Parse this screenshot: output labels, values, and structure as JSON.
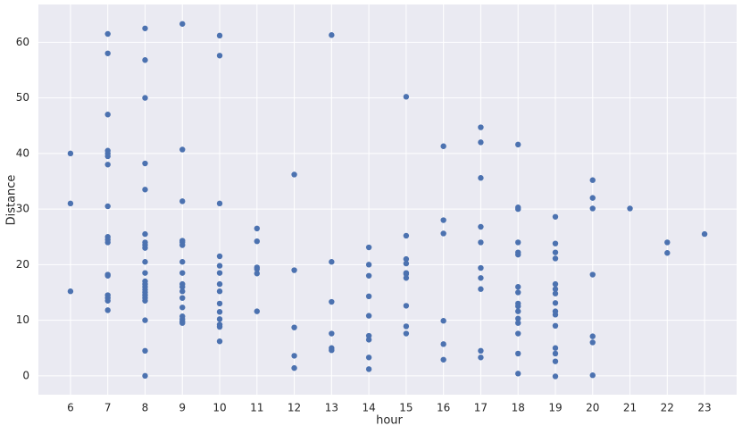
{
  "chart_data": {
    "type": "scatter",
    "x_label": "hour",
    "y_label": "Distance",
    "color": "#4c72b0",
    "grid": true,
    "xlim": [
      5.14,
      23.86
    ],
    "ylim": [
      -3.4,
      66.8
    ],
    "xticks": [
      6,
      7,
      8,
      9,
      10,
      11,
      12,
      13,
      14,
      15,
      16,
      17,
      18,
      19,
      20,
      21,
      22,
      23
    ],
    "yticks": [
      0,
      10,
      20,
      30,
      40,
      50,
      60
    ],
    "x": [
      6,
      6,
      6,
      7,
      7,
      7,
      7,
      7,
      7,
      7,
      7,
      7,
      7,
      7,
      7,
      7,
      7,
      7,
      7,
      7,
      8,
      8,
      8,
      8,
      8,
      8,
      8,
      8,
      8,
      8,
      8,
      8,
      8,
      8,
      8,
      8,
      8,
      8,
      8,
      8,
      8,
      8,
      9,
      9,
      9,
      9,
      9,
      9,
      9,
      9,
      9,
      9,
      9,
      9,
      9,
      9,
      9,
      9,
      9,
      10,
      10,
      10,
      10,
      10,
      10,
      10,
      10,
      10,
      10,
      10,
      10,
      10,
      10,
      11,
      11,
      11,
      11,
      11,
      11,
      12,
      12,
      12,
      12,
      12,
      13,
      13,
      13,
      13,
      13,
      13,
      14,
      14,
      14,
      14,
      14,
      14,
      14,
      14,
      14,
      15,
      15,
      15,
      15,
      15,
      15,
      15,
      15,
      15,
      15,
      16,
      16,
      16,
      16,
      16,
      16,
      17,
      17,
      17,
      17,
      17,
      17,
      17,
      17,
      17,
      17,
      18,
      18,
      18,
      18,
      18,
      18,
      18,
      18,
      18,
      18,
      18,
      18,
      18,
      18,
      18,
      18,
      19,
      19,
      19,
      19,
      19,
      19,
      19,
      19,
      19,
      19,
      19,
      19,
      19,
      19,
      19,
      20,
      20,
      20,
      20,
      20,
      20,
      20,
      21,
      22,
      22,
      23
    ],
    "y": [
      40,
      31,
      15.2,
      61.5,
      58,
      47,
      40.5,
      40,
      39.5,
      38,
      30.5,
      25,
      24.5,
      24,
      18.2,
      18,
      14.5,
      14,
      13.5,
      11.8,
      62.5,
      56.8,
      50,
      38.2,
      33.5,
      25.5,
      24,
      23.5,
      23,
      20.5,
      18.5,
      17,
      16.5,
      16,
      15.5,
      15,
      14.5,
      14,
      13.5,
      10,
      4.5,
      0,
      63.3,
      40.7,
      31.4,
      24.3,
      24,
      23.5,
      20.5,
      18.5,
      16.5,
      16,
      15.2,
      14,
      12.3,
      10.7,
      10.2,
      9.8,
      9.5,
      61.2,
      57.6,
      31,
      21.5,
      19.8,
      18.5,
      16.5,
      15.2,
      13,
      11.5,
      10.2,
      9.2,
      8.8,
      6.2,
      26.5,
      24.2,
      19.5,
      19.2,
      18.4,
      11.6,
      36.2,
      19,
      8.7,
      3.6,
      1.4,
      61.3,
      20.5,
      13.3,
      7.6,
      5,
      4.6,
      23.1,
      20,
      18,
      14.3,
      10.8,
      7.2,
      6.5,
      3.3,
      1.2,
      50.2,
      25.2,
      21,
      20.2,
      18.5,
      18.3,
      17.6,
      12.6,
      8.9,
      7.6,
      41.3,
      28,
      25.6,
      9.9,
      5.7,
      2.9,
      44.7,
      42,
      35.6,
      26.8,
      24,
      19.4,
      17.6,
      15.6,
      4.5,
      3.3,
      41.6,
      30.3,
      30,
      24,
      22.2,
      21.8,
      16,
      15,
      13,
      12.5,
      11.6,
      10.3,
      9.5,
      7.6,
      4,
      0.4,
      28.6,
      23.8,
      22.2,
      21.1,
      16.5,
      15.6,
      14.8,
      13.1,
      11.6,
      11,
      9,
      5,
      4,
      2.6,
      -0.1,
      35.2,
      32,
      30.1,
      18.2,
      7.1,
      6,
      0.1,
      30.1,
      24,
      22.1,
      25.5
    ]
  }
}
